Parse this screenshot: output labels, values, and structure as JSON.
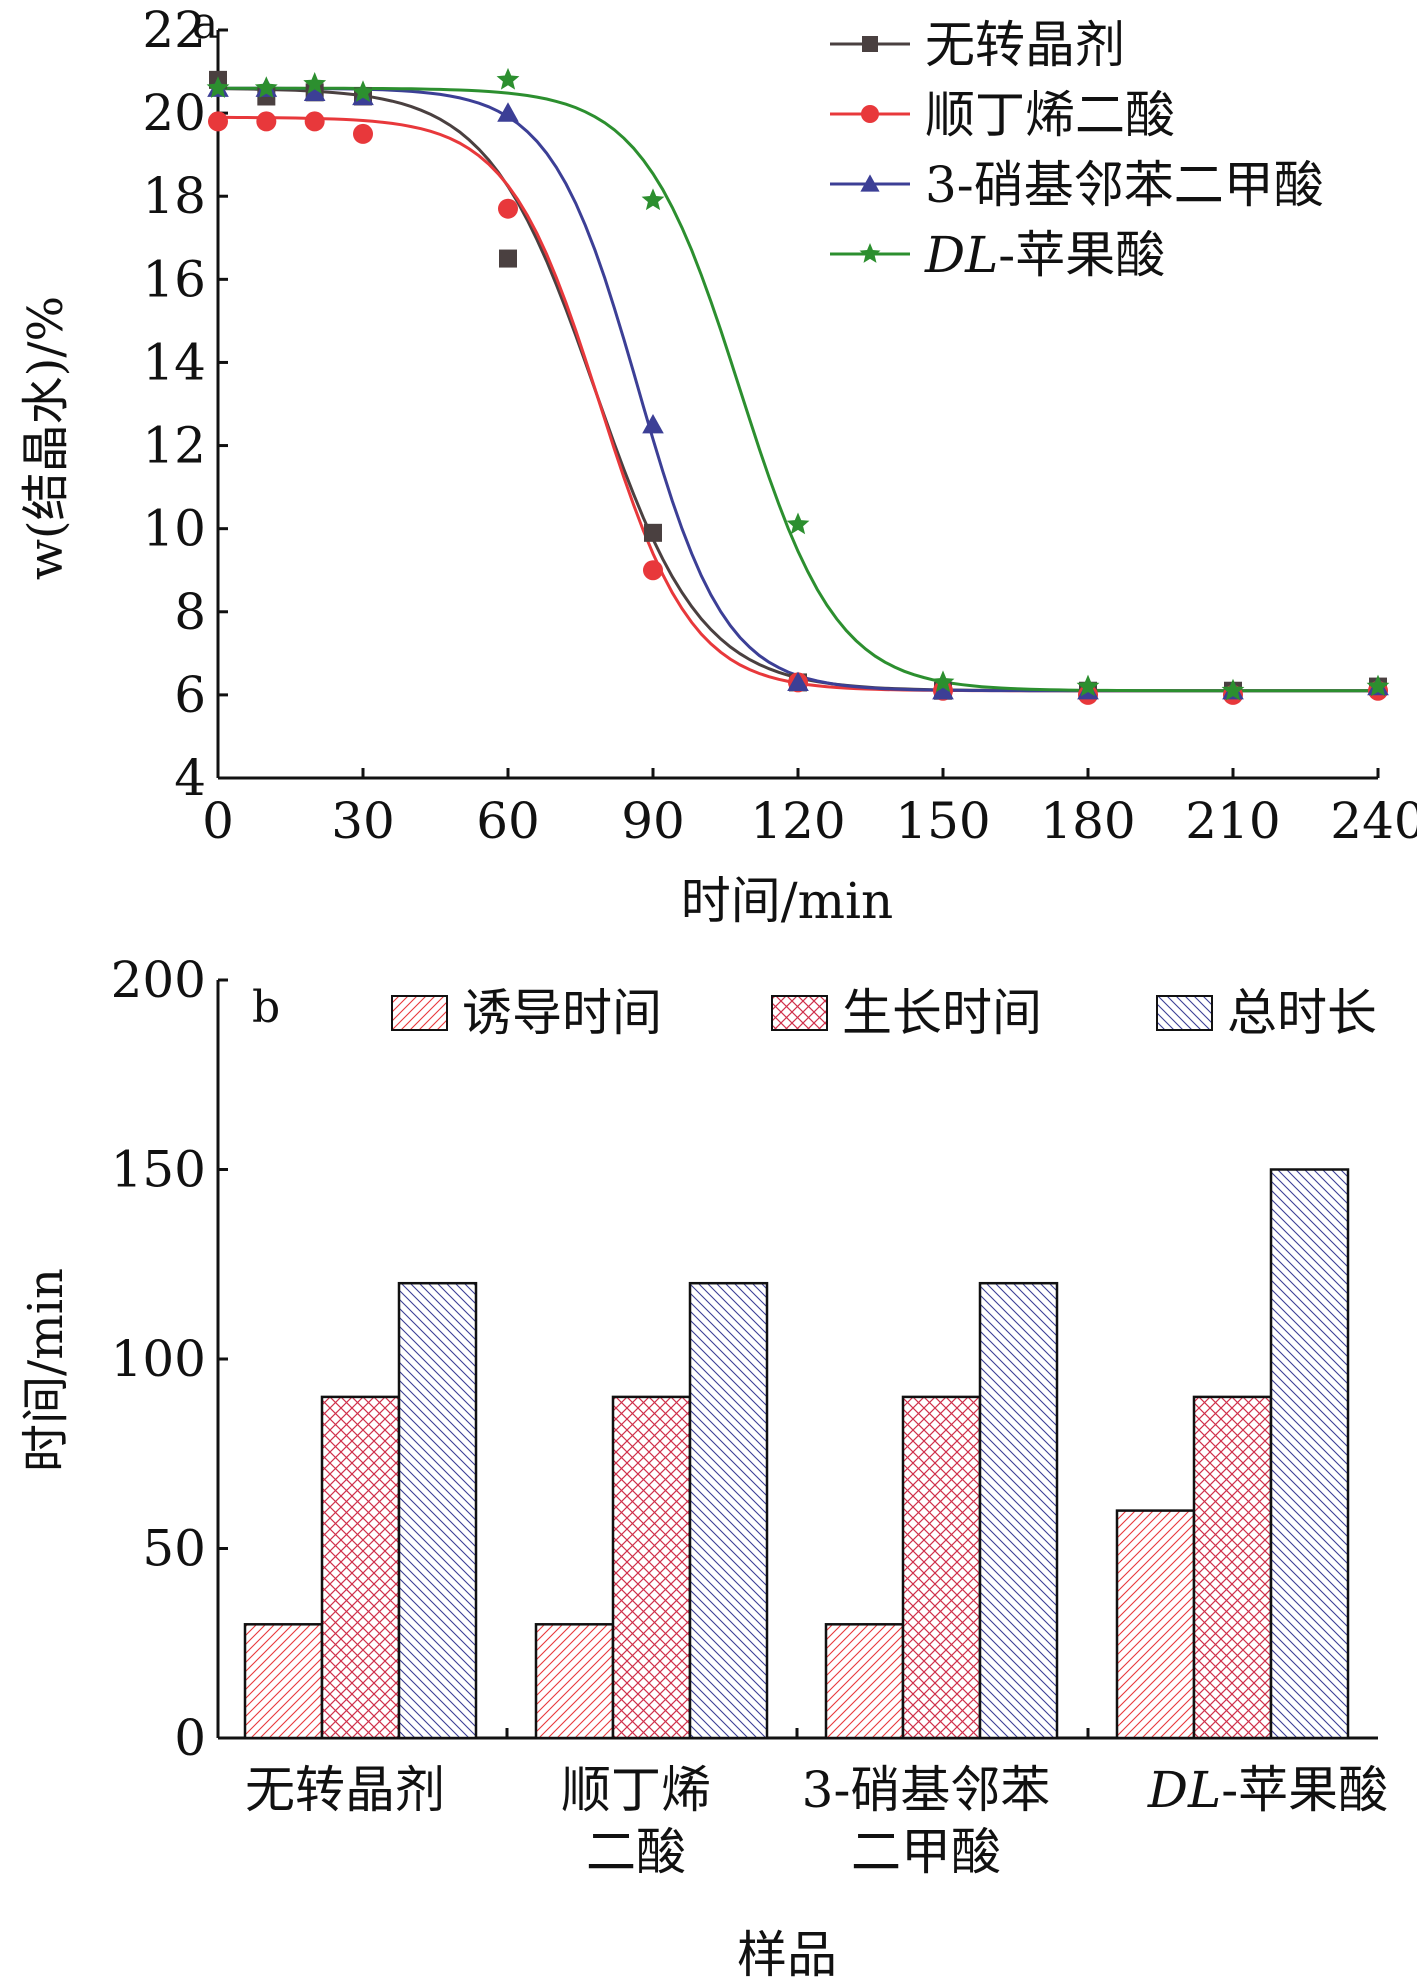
{
  "chart_data": [
    {
      "panel": "a",
      "type": "line",
      "xlabel": "时间/min",
      "ylabel": "w(结晶水)/%",
      "xlim": [
        0,
        240
      ],
      "ylim": [
        4,
        22
      ],
      "xticks": [
        0,
        30,
        60,
        90,
        120,
        150,
        180,
        210,
        240
      ],
      "yticks": [
        4,
        6,
        8,
        10,
        12,
        14,
        16,
        18,
        20,
        22
      ],
      "legend_position": "top-right",
      "x": [
        0,
        10,
        20,
        30,
        60,
        90,
        120,
        150,
        180,
        210,
        240
      ],
      "series": [
        {
          "name": "无转晶剂",
          "color": "#4a4040",
          "marker": "square",
          "points": [
            20.8,
            20.4,
            20.5,
            20.4,
            16.5,
            9.9,
            6.3,
            6.1,
            6.1,
            6.1,
            6.2
          ],
          "fit": {
            "top": 20.6,
            "bottom": 6.1,
            "x0": 78,
            "k": 11
          }
        },
        {
          "name": "顺丁烯二酸",
          "color": "#e8383b",
          "marker": "circle",
          "points": [
            19.8,
            19.8,
            19.8,
            19.5,
            17.7,
            9.0,
            6.3,
            6.1,
            6.0,
            6.0,
            6.1
          ],
          "fit": {
            "top": 19.9,
            "bottom": 6.1,
            "x0": 79,
            "k": 9.5
          }
        },
        {
          "name": "3-硝基邻苯二甲酸",
          "color": "#3c3f96",
          "marker": "triangle",
          "points": [
            20.6,
            20.6,
            20.5,
            20.4,
            20.0,
            12.5,
            6.3,
            6.1,
            6.1,
            6.1,
            6.2
          ],
          "fit": {
            "top": 20.6,
            "bottom": 6.1,
            "x0": 87,
            "k": 9
          }
        },
        {
          "name": "DL-苹果酸",
          "color": "#2c8f2f",
          "marker": "star",
          "points": [
            20.6,
            20.6,
            20.7,
            20.5,
            20.8,
            17.9,
            10.1,
            6.3,
            6.2,
            6.1,
            6.2
          ],
          "fit": {
            "top": 20.6,
            "bottom": 6.1,
            "x0": 108,
            "k": 10
          }
        }
      ]
    },
    {
      "panel": "b",
      "type": "bar",
      "xlabel": "样品",
      "ylabel": "时间/min",
      "ylim": [
        0,
        200
      ],
      "yticks": [
        0,
        50,
        100,
        150,
        200
      ],
      "legend_position": "top",
      "categories": [
        [
          "无转晶剂"
        ],
        [
          "顺丁烯",
          "二酸"
        ],
        [
          "3-硝基邻苯",
          "二甲酸"
        ],
        [
          "DL-苹果酸"
        ]
      ],
      "series": [
        {
          "name": "诱导时间",
          "color": "#e8383b",
          "pattern": "hatch-diagonal",
          "values": [
            30,
            30,
            30,
            60
          ]
        },
        {
          "name": "生长时间",
          "color": "#d0304b",
          "pattern": "crosshatch",
          "values": [
            90,
            90,
            90,
            90
          ]
        },
        {
          "name": "总时长",
          "color": "#3c3f96",
          "pattern": "hatch-backslash",
          "values": [
            120,
            120,
            120,
            150
          ]
        }
      ]
    }
  ]
}
